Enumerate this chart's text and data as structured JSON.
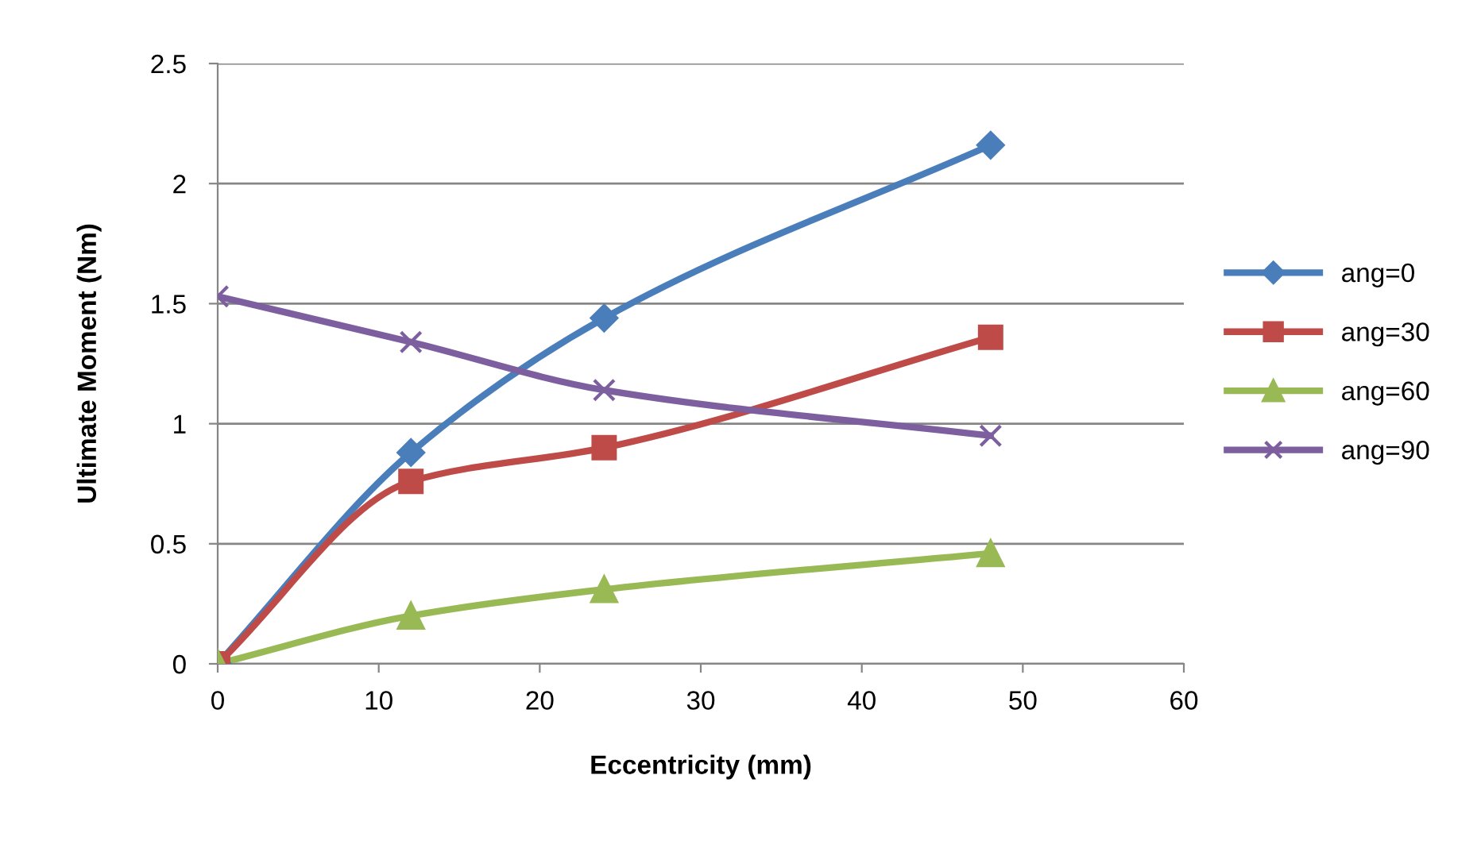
{
  "chart_data": {
    "type": "line",
    "xlabel": "Eccentricity (mm)",
    "ylabel": "Ultimate Moment (Nm)",
    "x": [
      0,
      12,
      24,
      48
    ],
    "series": [
      {
        "name": "ang=0",
        "color": "#4a7ebb",
        "values": [
          0,
          0.88,
          1.44,
          2.16
        ],
        "marker": "diamond"
      },
      {
        "name": "ang=30",
        "color": "#be4b48",
        "values": [
          0,
          0.76,
          0.9,
          1.36
        ],
        "marker": "square"
      },
      {
        "name": "ang=60",
        "color": "#98b954",
        "values": [
          0,
          0.2,
          0.31,
          0.46
        ],
        "marker": "triangle"
      },
      {
        "name": "ang=90",
        "color": "#7d5fa0",
        "values": [
          1.53,
          1.34,
          1.14,
          0.95
        ],
        "marker": "cross"
      }
    ],
    "xlim": [
      0,
      60
    ],
    "xticks": [
      0,
      10,
      20,
      30,
      40,
      50,
      60
    ],
    "ylim": [
      0,
      2.5
    ],
    "yticks": [
      0,
      0.5,
      1,
      1.5,
      2,
      2.5
    ],
    "grid": "y",
    "legend": "right",
    "line_style": "solid"
  }
}
